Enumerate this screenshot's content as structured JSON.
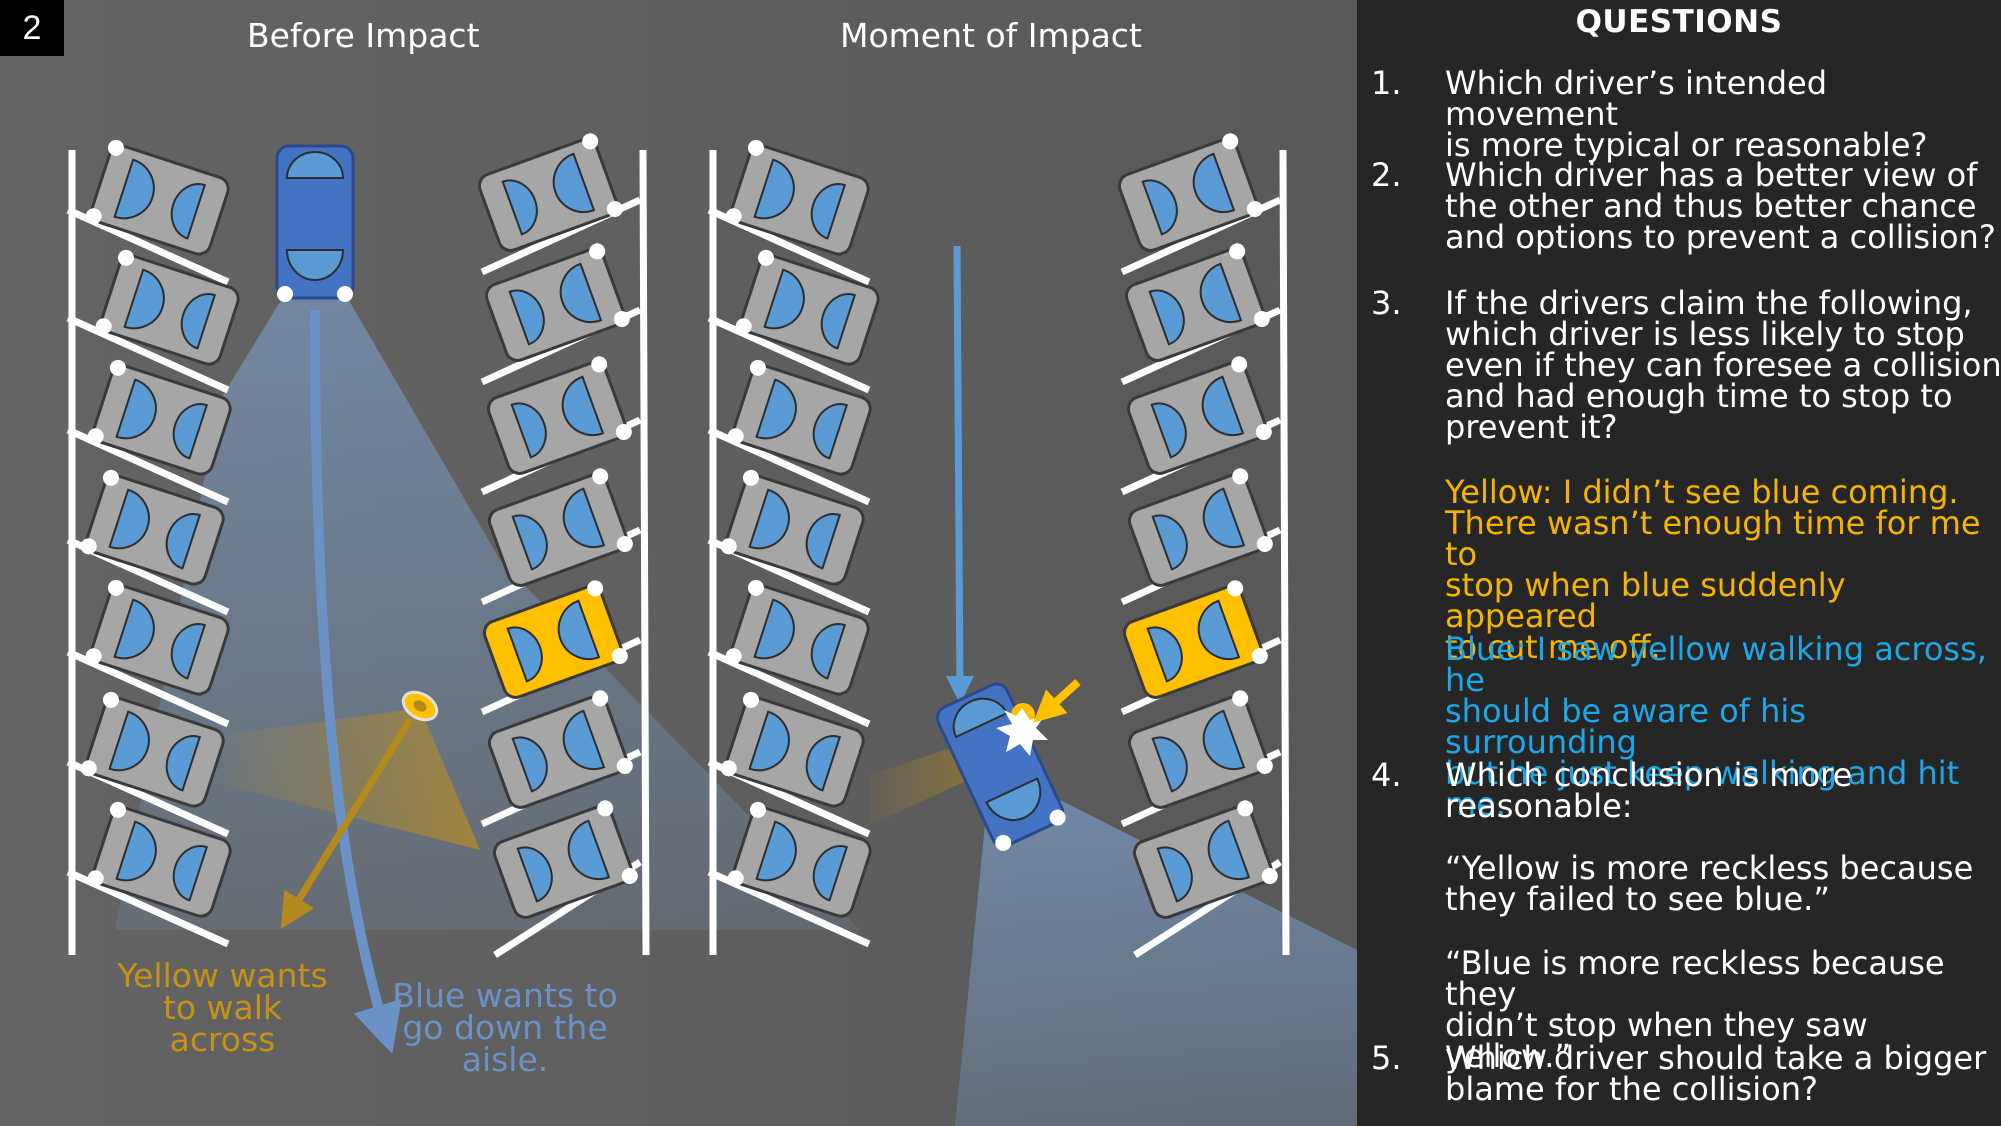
{
  "slide_number": "2",
  "panels": {
    "left_title": "Before Impact",
    "right_title": "Moment of Impact"
  },
  "captions": {
    "yellow": [
      "Yellow wants",
      "to walk",
      "across"
    ],
    "blue": [
      "Blue wants to",
      "go down the",
      "aisle."
    ]
  },
  "colors": {
    "yellow": "#f5b400",
    "blue": "#1ea7e8",
    "parked_car": "#a6a6a6",
    "windshield": "#5b9bd5",
    "blue_car": "#4472c4",
    "yellow_car": "#ffc000"
  },
  "questions": {
    "title": "QUESTIONS",
    "q1": {
      "num": "1.",
      "lines": [
        "Which driver’s intended movement",
        "is more typical or reasonable?"
      ]
    },
    "q2": {
      "num": "2.",
      "lines": [
        "Which driver has a better view of",
        "the other and thus better chance",
        "and options to prevent a collision?"
      ]
    },
    "q3": {
      "num": "3.",
      "lines": [
        "If the drivers claim the following,",
        "which driver is less likely to stop",
        "even if they can foresee a collision",
        "and had enough time to stop to",
        "prevent it?"
      ]
    },
    "yellow_claim": [
      "Yellow: I didn’t see blue coming.",
      "There wasn’t enough time for me to",
      "stop when blue suddenly appeared",
      "to cut me off."
    ],
    "blue_claim": [
      "Blue: I saw yellow walking across, he",
      "should be aware of his surrounding",
      "but he just keep walking and hit me."
    ],
    "q4": {
      "num": "4.",
      "lines": [
        "Which conclusion is more",
        "reasonable:"
      ]
    },
    "conclusion_a": [
      "“Yellow is more reckless because",
      "they failed to see blue.”"
    ],
    "conclusion_b": [
      "“Blue is more reckless because they",
      "didn’t stop when they saw yellow.”"
    ],
    "q5": {
      "num": "5.",
      "lines": [
        "Which driver should take a bigger",
        "blame for the collision?"
      ]
    }
  }
}
